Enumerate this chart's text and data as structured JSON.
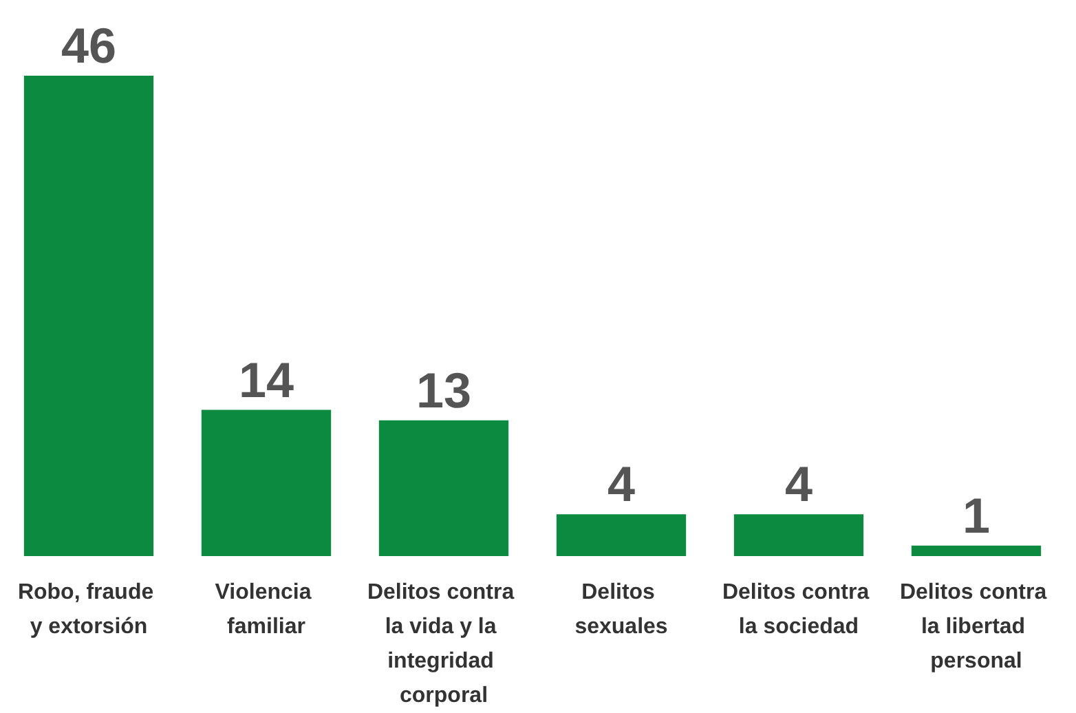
{
  "chart_data": {
    "type": "bar",
    "categories": [
      "Robo, fraude y extorsión",
      "Violencia familiar",
      "Delitos contra la vida y la integridad corporal",
      "Delitos sexuales",
      "Delitos contra la sociedad",
      "Delitos contra la libertad personal"
    ],
    "values": [
      46,
      14,
      13,
      4,
      4,
      1
    ],
    "color": "#0b8a40",
    "data_labels": true
  }
}
